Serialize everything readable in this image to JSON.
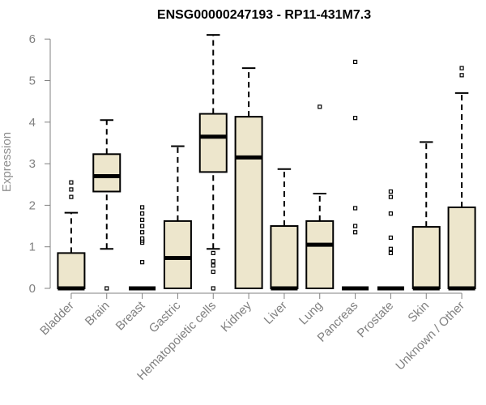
{
  "chart_data": {
    "type": "boxplot",
    "title": "ENSG00000247193 - RP11-431M7.3",
    "xlabel": "",
    "ylabel": "Expression",
    "ylim": [
      0,
      6.2
    ],
    "yticks": [
      0,
      1,
      2,
      3,
      4,
      5,
      6
    ],
    "box_color": "#ede6cc",
    "categories": [
      "Bladder",
      "Brain",
      "Breast",
      "Gastric",
      "Hematopoietic cells",
      "Kidney",
      "Liver",
      "Lung",
      "Pancreas",
      "Prostate",
      "Skin",
      "Unknown / Other"
    ],
    "boxes": [
      {
        "name": "Bladder",
        "whisker_low": 0,
        "q1": 0,
        "median": 0,
        "q3": 0.85,
        "whisker_high": 1.82,
        "outliers": [
          2.2,
          2.38,
          2.55
        ]
      },
      {
        "name": "Brain",
        "whisker_low": 0.95,
        "q1": 2.33,
        "median": 2.7,
        "q3": 3.23,
        "whisker_high": 4.05,
        "outliers": [
          0
        ]
      },
      {
        "name": "Breast",
        "whisker_low": 0,
        "q1": 0,
        "median": 0,
        "q3": 0,
        "whisker_high": 0,
        "outliers": [
          0.63,
          1.1,
          1.15,
          1.2,
          1.35,
          1.5,
          1.65,
          1.8,
          1.95
        ]
      },
      {
        "name": "Gastric",
        "whisker_low": 0,
        "q1": 0,
        "median": 0.73,
        "q3": 1.62,
        "whisker_high": 3.42,
        "outliers": []
      },
      {
        "name": "Hematopoietic cells",
        "whisker_low": 0.95,
        "q1": 2.8,
        "median": 3.65,
        "q3": 4.2,
        "whisker_high": 6.1,
        "outliers": [
          0,
          0.4,
          0.55,
          0.65,
          0.85
        ]
      },
      {
        "name": "Kidney",
        "whisker_low": 0,
        "q1": 0,
        "median": 3.15,
        "q3": 4.13,
        "whisker_high": 5.3,
        "outliers": []
      },
      {
        "name": "Liver",
        "whisker_low": 0,
        "q1": 0,
        "median": 0,
        "q3": 1.5,
        "whisker_high": 2.87,
        "outliers": []
      },
      {
        "name": "Lung",
        "whisker_low": 0,
        "q1": 0,
        "median": 1.05,
        "q3": 1.62,
        "whisker_high": 2.28,
        "outliers": [
          4.37
        ]
      },
      {
        "name": "Pancreas",
        "whisker_low": 0,
        "q1": 0,
        "median": 0,
        "q3": 0,
        "whisker_high": 0,
        "outliers": [
          1.35,
          1.5,
          1.93,
          4.1,
          5.45
        ]
      },
      {
        "name": "Prostate",
        "whisker_low": 0,
        "q1": 0,
        "median": 0,
        "q3": 0,
        "whisker_high": 0,
        "outliers": [
          0.85,
          0.95,
          1.22,
          1.8,
          2.2,
          2.33
        ]
      },
      {
        "name": "Skin",
        "whisker_low": 0,
        "q1": 0,
        "median": 0,
        "q3": 1.48,
        "whisker_high": 3.52,
        "outliers": []
      },
      {
        "name": "Unknown / Other",
        "whisker_low": 0,
        "q1": 0,
        "median": 0,
        "q3": 1.95,
        "whisker_high": 4.7,
        "outliers": [
          5.13,
          5.3
        ]
      }
    ]
  }
}
